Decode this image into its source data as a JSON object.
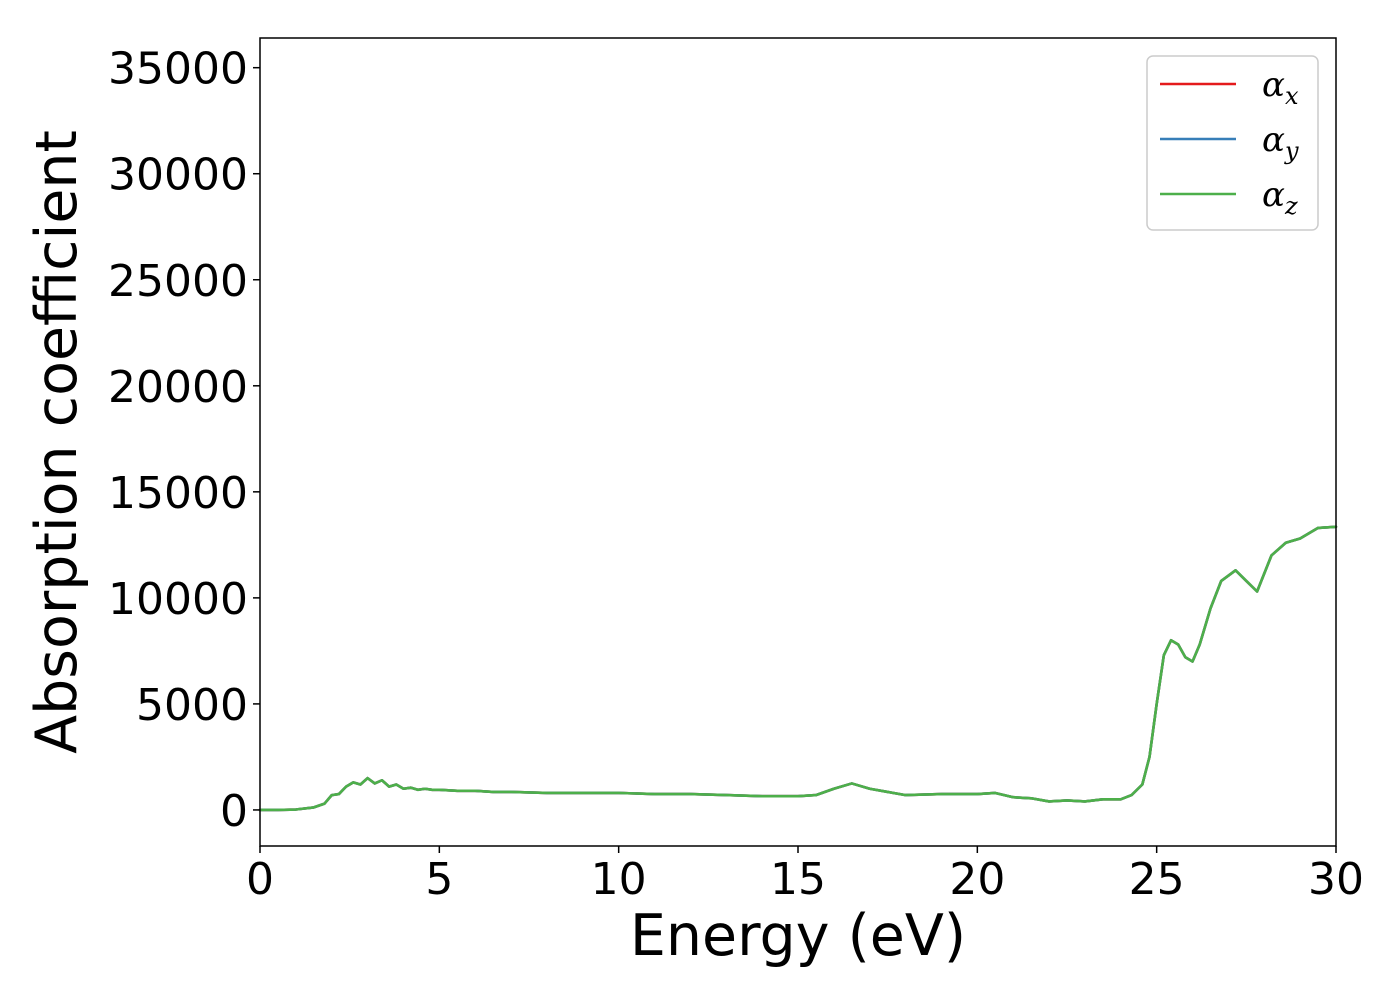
{
  "chart_data": {
    "type": "line",
    "xlabel": "Energy (eV)",
    "ylabel": "Absorption coefficient",
    "xlim": [
      0,
      30
    ],
    "ylim": [
      -1700,
      36400
    ],
    "xticks": [
      0,
      5,
      10,
      15,
      20,
      25,
      30
    ],
    "yticks": [
      0,
      5000,
      10000,
      15000,
      20000,
      25000,
      30000,
      35000
    ],
    "grid": false,
    "legend_position": "top-right",
    "series": [
      {
        "name": "α_x",
        "legend_main": "α",
        "legend_sub": "x",
        "color": "#e41a1c",
        "x": [
          0,
          0.5,
          1,
          1.5,
          1.8,
          2.0,
          2.2,
          2.4,
          2.6,
          2.8,
          3.0,
          3.2,
          3.4,
          3.6,
          3.8,
          4.0,
          4.2,
          4.4,
          4.6,
          4.8,
          5.0,
          5.5,
          6.0,
          6.5,
          7,
          8,
          9,
          10,
          11,
          12,
          13,
          14,
          15,
          15.5,
          16,
          16.5,
          17,
          17.5,
          18,
          19,
          20,
          20.5,
          21,
          21.5,
          22,
          22.5,
          23,
          23.5,
          24,
          24.3,
          24.6,
          24.8,
          25.0,
          25.2,
          25.4,
          25.6,
          25.8,
          26.0,
          26.2,
          26.5,
          26.8,
          27.2,
          27.5,
          27.8,
          28.2,
          28.6,
          29.0,
          29.5,
          30
        ],
        "values": [
          0,
          0,
          20,
          120,
          300,
          700,
          750,
          1100,
          1300,
          1200,
          1500,
          1250,
          1400,
          1100,
          1200,
          1000,
          1050,
          950,
          1000,
          950,
          950,
          900,
          900,
          850,
          850,
          800,
          800,
          800,
          750,
          750,
          700,
          650,
          650,
          700,
          1000,
          1250,
          1000,
          850,
          700,
          750,
          750,
          800,
          600,
          550,
          400,
          450,
          400,
          500,
          500,
          700,
          1200,
          2500,
          5000,
          7300,
          8000,
          7800,
          7200,
          7000,
          7800,
          9500,
          10800,
          11300,
          10800,
          10300,
          12000,
          12600,
          12800,
          13300,
          13350
        ]
      },
      {
        "name": "α_y",
        "legend_main": "α",
        "legend_sub": "y",
        "color": "#377eb8",
        "x": [
          0,
          0.5,
          1,
          1.5,
          1.8,
          2.0,
          2.2,
          2.4,
          2.6,
          2.8,
          3.0,
          3.2,
          3.4,
          3.6,
          3.8,
          4.0,
          4.2,
          4.4,
          4.6,
          4.8,
          5.0,
          5.5,
          6.0,
          6.5,
          7,
          8,
          9,
          10,
          11,
          12,
          13,
          14,
          15,
          15.5,
          16,
          16.5,
          17,
          17.5,
          18,
          19,
          20,
          20.5,
          21,
          21.5,
          22,
          22.5,
          23,
          23.5,
          24,
          24.3,
          24.6,
          24.8,
          25.0,
          25.2,
          25.4,
          25.6,
          25.8,
          26.0,
          26.2,
          26.5,
          26.8,
          27.2,
          27.5,
          27.8,
          28.2,
          28.6,
          29.0,
          29.5,
          30
        ],
        "values": [
          0,
          0,
          20,
          120,
          300,
          700,
          750,
          1100,
          1300,
          1200,
          1500,
          1250,
          1400,
          1100,
          1200,
          1000,
          1050,
          950,
          1000,
          950,
          950,
          900,
          900,
          850,
          850,
          800,
          800,
          800,
          750,
          750,
          700,
          650,
          650,
          700,
          1000,
          1250,
          1000,
          850,
          700,
          750,
          750,
          800,
          600,
          550,
          400,
          450,
          400,
          500,
          500,
          700,
          1200,
          2500,
          5000,
          7300,
          8000,
          7800,
          7200,
          7000,
          7800,
          9500,
          10800,
          11300,
          10800,
          10300,
          12000,
          12600,
          12800,
          13300,
          13350
        ]
      },
      {
        "name": "α_z",
        "legend_main": "α",
        "legend_sub": "z",
        "color": "#4daf4a",
        "x": [
          0,
          0.5,
          1,
          1.5,
          1.8,
          2.0,
          2.2,
          2.4,
          2.6,
          2.8,
          3.0,
          3.2,
          3.4,
          3.6,
          3.8,
          4.0,
          4.2,
          4.4,
          4.6,
          4.8,
          5.0,
          5.5,
          6.0,
          6.5,
          7,
          8,
          9,
          10,
          11,
          12,
          13,
          14,
          15,
          15.5,
          16,
          16.5,
          17,
          17.5,
          18,
          19,
          20,
          20.5,
          21,
          21.5,
          22,
          22.5,
          23,
          23.5,
          24,
          24.3,
          24.6,
          24.8,
          25.0,
          25.2,
          25.4,
          25.6,
          25.8,
          26.0,
          26.2,
          26.5,
          26.8,
          27.2,
          27.5,
          27.8,
          28.2,
          28.6,
          29.0,
          29.5,
          30
        ],
        "values": [
          0,
          0,
          20,
          120,
          300,
          700,
          750,
          1100,
          1300,
          1200,
          1500,
          1250,
          1400,
          1100,
          1200,
          1000,
          1050,
          950,
          1000,
          950,
          950,
          900,
          900,
          850,
          850,
          800,
          800,
          800,
          750,
          750,
          700,
          650,
          650,
          700,
          1000,
          1250,
          1000,
          850,
          700,
          750,
          750,
          800,
          600,
          550,
          400,
          450,
          400,
          500,
          500,
          700,
          1200,
          2500,
          5000,
          7300,
          8000,
          7800,
          7200,
          7000,
          7800,
          9500,
          10800,
          11300,
          10800,
          10300,
          12000,
          12600,
          12800,
          13300,
          13350
        ]
      }
    ]
  }
}
